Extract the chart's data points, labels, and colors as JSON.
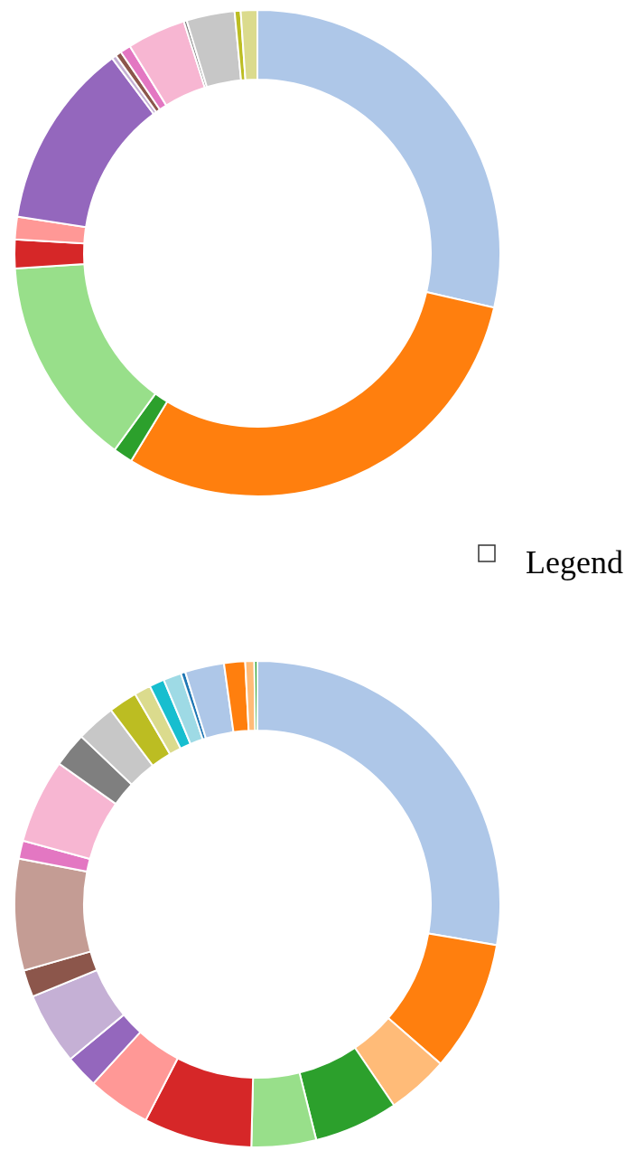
{
  "chart_data": [
    {
      "type": "donut",
      "legend_title": "Legend",
      "categories": [
        null,
        null,
        null,
        null,
        null,
        null,
        null,
        null,
        null,
        null,
        null,
        null,
        null,
        null,
        null
      ],
      "values": [
        28.6,
        30.1,
        1.3,
        14.0,
        1.9,
        1.5,
        12.4,
        0.3,
        0.4,
        0.7,
        3.9,
        0.2,
        3.2,
        0.4,
        1.1
      ],
      "colors": [
        "#aec7e8",
        "#ff7f0e",
        "#2ca02c",
        "#98df8a",
        "#d62728",
        "#ff9896",
        "#9467bd",
        "#c5b0d5",
        "#8c564b",
        "#e377c2",
        "#f7b6d2",
        "#7f7f7f",
        "#c7c7c7",
        "#bcbd22",
        "#dbdb8d"
      ]
    },
    {
      "type": "donut",
      "categories": [
        null,
        null,
        null,
        null,
        null,
        null,
        null,
        null,
        null,
        null,
        null,
        null,
        null,
        null,
        null,
        null,
        null,
        null,
        null,
        null,
        null,
        null,
        null,
        null
      ],
      "values": [
        27.7,
        8.7,
        4.1,
        5.6,
        4.3,
        7.2,
        4.2,
        2.2,
        4.8,
        1.8,
        7.4,
        1.2,
        5.6,
        2.3,
        2.6,
        1.9,
        1.1,
        1.0,
        1.2,
        0.3,
        2.6,
        1.4,
        0.6,
        0.2
      ],
      "colors": [
        "#aec7e8",
        "#ff7f0e",
        "#ffbb78",
        "#2ca02c",
        "#98df8a",
        "#d62728",
        "#ff9896",
        "#9467bd",
        "#c5b0d5",
        "#8c564b",
        "#c49c94",
        "#e377c2",
        "#f7b6d2",
        "#7f7f7f",
        "#c7c7c7",
        "#bcbd22",
        "#dbdb8d",
        "#17becf",
        "#9edae5",
        "#1f77b4",
        "#aec7e8",
        "#ff7f0e",
        "#ffbb78",
        "#2ca02c"
      ]
    }
  ]
}
